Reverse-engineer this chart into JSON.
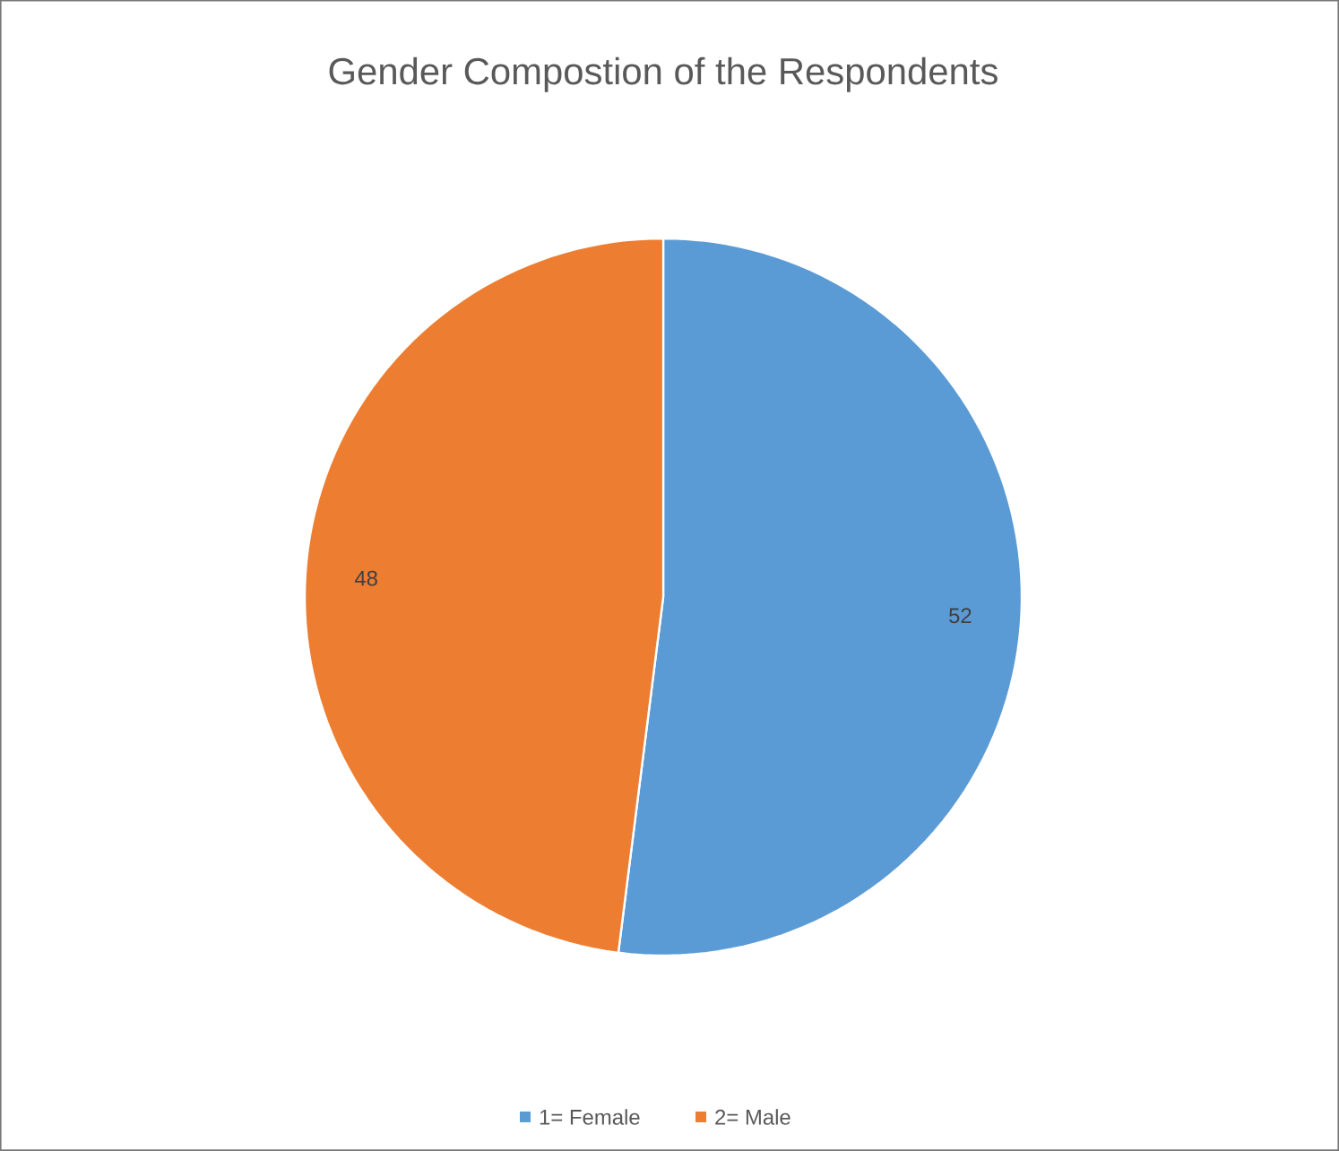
{
  "chart_data": {
    "type": "pie",
    "title": "Gender Compostion of the Respondents",
    "categories": [
      "1= Female",
      "2= Male"
    ],
    "values": [
      52,
      48
    ],
    "colors": [
      "#5b9bd5",
      "#ed7d31"
    ],
    "data_labels": true,
    "legend": "bottom"
  }
}
